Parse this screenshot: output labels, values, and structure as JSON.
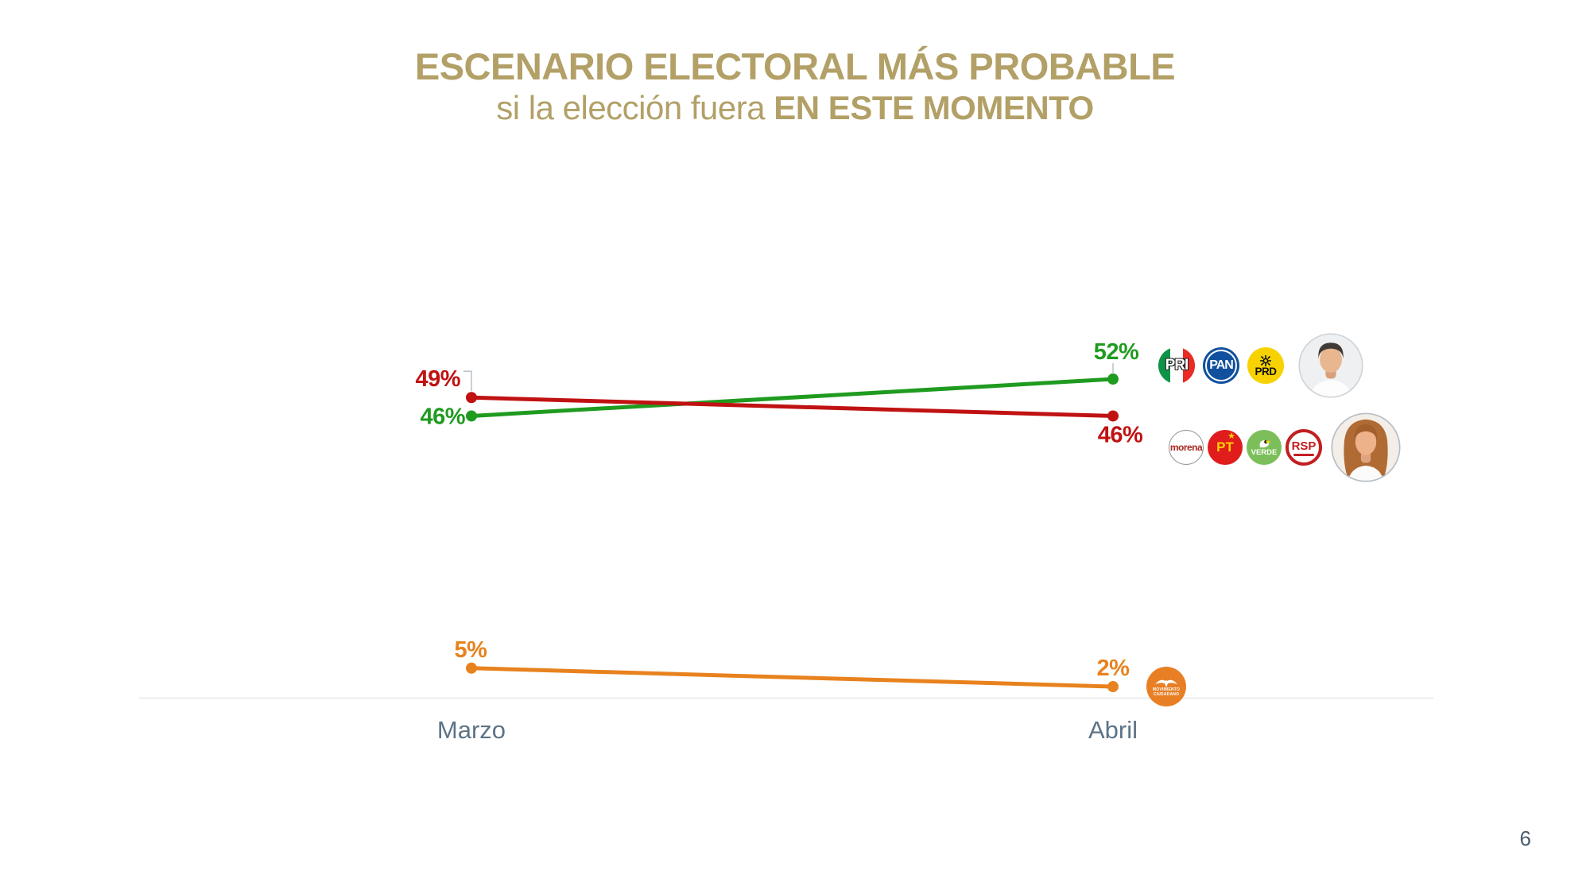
{
  "title": {
    "line1": "ESCENARIO ELECTORAL MÁS PROBABLE",
    "line2_regular": "si la elección fuera ",
    "line2_bold": "EN ESTE MOMENTO",
    "color": "#b2a067"
  },
  "chart_data": {
    "type": "line",
    "categories": [
      "Marzo",
      "Abril"
    ],
    "series": [
      {
        "name": "PRI-PAN-PRD",
        "color": "#1f9b1f",
        "values": [
          46,
          52
        ],
        "point_labels": [
          "46%",
          "52%"
        ]
      },
      {
        "name": "MORENA-PT-VERDE-RSP",
        "color": "#c01212",
        "values": [
          49,
          46
        ],
        "point_labels": [
          "49%",
          "46%"
        ]
      },
      {
        "name": "Movimiento Ciudadano",
        "color": "#e8821e",
        "values": [
          5,
          2
        ],
        "point_labels": [
          "5%",
          "2%"
        ]
      }
    ],
    "title": "",
    "xlabel": "",
    "ylabel": "",
    "ylim": [
      0,
      60
    ],
    "grid": false,
    "axis_label_color": "#5d7386",
    "legend_position": "right-of-points"
  },
  "legend": {
    "top_coalition": {
      "series": "PRI-PAN-PRD",
      "parties": [
        {
          "label": "PRI"
        },
        {
          "label": "PAN"
        },
        {
          "label": "PRD"
        }
      ],
      "candidate_photo": "male-candidate"
    },
    "bottom_coalition": {
      "series": "MORENA-PT-VERDE-RSP",
      "parties": [
        {
          "label": "morena"
        },
        {
          "label": "PT"
        },
        {
          "label": "VERDE"
        },
        {
          "label": "RSP"
        }
      ],
      "candidate_photo": "female-candidate"
    },
    "mc": {
      "label_line1": "MOVIMIENTO",
      "label_line2": "CIUDADANO"
    }
  },
  "page": {
    "number": "6"
  }
}
